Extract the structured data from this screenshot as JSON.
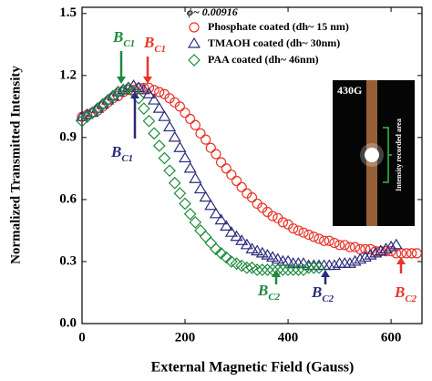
{
  "chart_data": {
    "type": "scatter",
    "xlabel": "External Magnetic Field (Gauss)",
    "ylabel": "Normalized Transmitted Intensity",
    "xlim": [
      0,
      660
    ],
    "ylim": [
      0,
      1.53
    ],
    "xticks": [
      0,
      200,
      400,
      600
    ],
    "yticks": [
      {
        "value": 0,
        "label": "0.0"
      },
      {
        "value": 0.3,
        "label": "0.3"
      },
      {
        "value": 0.6,
        "label": "0.6"
      },
      {
        "value": 0.9,
        "label": "0.9"
      },
      {
        "value": 1.2,
        "label": "1.2"
      },
      {
        "value": 1.5,
        "label": "1.5"
      }
    ],
    "legend_title": "ϕ~ 0.00916",
    "legend": "upper right",
    "series": [
      {
        "name": "Phosphate coated (dh~ 15 nm)",
        "color": "#e8342a",
        "marker": "circle",
        "x": [
          0,
          10,
          20,
          30,
          40,
          50,
          60,
          70,
          80,
          90,
          100,
          110,
          120,
          130,
          140,
          150,
          160,
          170,
          180,
          190,
          200,
          210,
          220,
          230,
          240,
          250,
          260,
          270,
          280,
          290,
          300,
          310,
          320,
          330,
          340,
          350,
          360,
          370,
          380,
          390,
          400,
          410,
          420,
          430,
          440,
          450,
          460,
          470,
          480,
          490,
          500,
          510,
          520,
          530,
          540,
          550,
          560,
          570,
          580,
          590,
          600,
          610,
          620,
          630,
          640,
          650
        ],
        "values": [
          1.0,
          1.01,
          1.02,
          1.03,
          1.05,
          1.07,
          1.09,
          1.1,
          1.12,
          1.13,
          1.13,
          1.14,
          1.14,
          1.14,
          1.13,
          1.12,
          1.11,
          1.09,
          1.07,
          1.05,
          1.02,
          0.99,
          0.96,
          0.92,
          0.89,
          0.85,
          0.82,
          0.78,
          0.75,
          0.72,
          0.69,
          0.66,
          0.63,
          0.61,
          0.58,
          0.56,
          0.54,
          0.52,
          0.51,
          0.49,
          0.48,
          0.46,
          0.45,
          0.44,
          0.43,
          0.42,
          0.41,
          0.4,
          0.4,
          0.39,
          0.38,
          0.38,
          0.37,
          0.37,
          0.36,
          0.36,
          0.36,
          0.35,
          0.35,
          0.35,
          0.35,
          0.34,
          0.34,
          0.34,
          0.34,
          0.34
        ]
      },
      {
        "name": "TMAOH coated (dh~ 30nm)",
        "color": "#2b2b7c",
        "marker": "triangle",
        "x": [
          0,
          10,
          20,
          30,
          40,
          50,
          60,
          70,
          80,
          90,
          100,
          110,
          120,
          130,
          140,
          150,
          160,
          170,
          180,
          190,
          200,
          210,
          220,
          230,
          240,
          250,
          260,
          270,
          280,
          290,
          300,
          310,
          320,
          330,
          340,
          350,
          360,
          370,
          380,
          390,
          400,
          410,
          420,
          430,
          440,
          450,
          460,
          470,
          480,
          490,
          500,
          510,
          520,
          530,
          540,
          550,
          560,
          570,
          580,
          590,
          600,
          610
        ],
        "values": [
          1.0,
          1.01,
          1.02,
          1.04,
          1.06,
          1.08,
          1.1,
          1.12,
          1.13,
          1.14,
          1.15,
          1.14,
          1.13,
          1.11,
          1.08,
          1.04,
          1.0,
          0.95,
          0.9,
          0.85,
          0.8,
          0.75,
          0.7,
          0.65,
          0.61,
          0.57,
          0.53,
          0.5,
          0.47,
          0.44,
          0.42,
          0.4,
          0.38,
          0.36,
          0.35,
          0.34,
          0.33,
          0.32,
          0.31,
          0.3,
          0.3,
          0.29,
          0.29,
          0.29,
          0.28,
          0.28,
          0.28,
          0.28,
          0.28,
          0.28,
          0.29,
          0.29,
          0.29,
          0.3,
          0.31,
          0.32,
          0.33,
          0.34,
          0.35,
          0.36,
          0.37,
          0.38
        ]
      },
      {
        "name": "PAA coated (dh~ 46nm)",
        "color": "#1e8a3e",
        "marker": "diamond",
        "x": [
          0,
          10,
          20,
          30,
          40,
          50,
          60,
          70,
          80,
          90,
          100,
          110,
          120,
          130,
          140,
          150,
          160,
          170,
          180,
          190,
          200,
          210,
          220,
          230,
          240,
          250,
          260,
          270,
          280,
          290,
          300,
          310,
          320,
          330,
          340,
          350,
          360,
          370,
          380,
          390,
          400,
          410,
          420,
          430,
          440,
          450,
          460
        ],
        "values": [
          0.98,
          1.0,
          1.02,
          1.04,
          1.06,
          1.08,
          1.1,
          1.12,
          1.13,
          1.14,
          1.12,
          1.09,
          1.04,
          0.98,
          0.92,
          0.86,
          0.8,
          0.74,
          0.68,
          0.63,
          0.58,
          0.53,
          0.49,
          0.45,
          0.42,
          0.39,
          0.36,
          0.34,
          0.32,
          0.3,
          0.29,
          0.28,
          0.27,
          0.27,
          0.26,
          0.26,
          0.26,
          0.26,
          0.26,
          0.26,
          0.26,
          0.26,
          0.26,
          0.26,
          0.27,
          0.27,
          0.27
        ]
      }
    ],
    "annotations": [
      {
        "text": "B",
        "sub": "C1",
        "color": "#1e8a3e"
      },
      {
        "text": "B",
        "sub": "C1",
        "color": "#e8342a"
      },
      {
        "text": "B",
        "sub": "C1",
        "color": "#2b2b7c"
      },
      {
        "text": "B",
        "sub": "C2",
        "color": "#1e8a3e"
      },
      {
        "text": "B",
        "sub": "C2",
        "color": "#2b2b7c"
      },
      {
        "text": "B",
        "sub": "C2",
        "color": "#e8342a"
      }
    ],
    "inset": {
      "label": "430G",
      "note": "Intensity recorded area"
    }
  }
}
